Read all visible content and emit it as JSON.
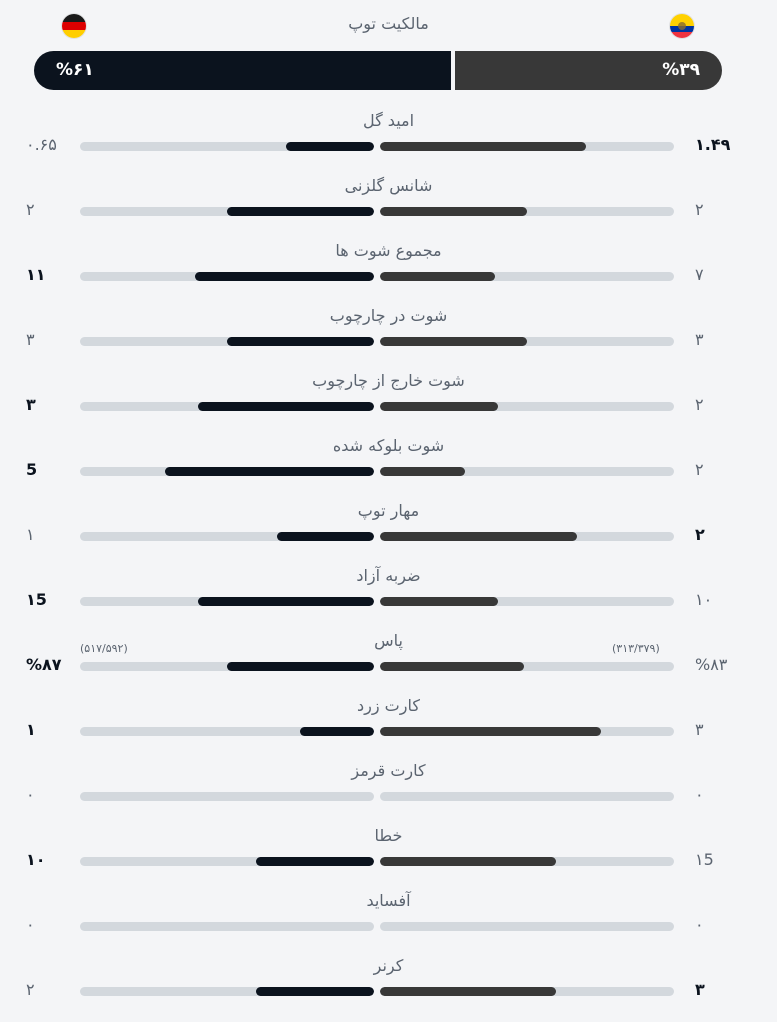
{
  "possession": {
    "title": "مالکیت توپ",
    "left_value": "%۶۱",
    "right_value": "%۳۹",
    "left_fraction": 0.61,
    "right_fraction": 0.39,
    "left_flag": "germany-flag-icon",
    "right_flag": "ecuador-flag-icon"
  },
  "colors": {
    "left_team": "#0b131e",
    "right_team": "#383838",
    "track": "#d3d8dd",
    "background": "#f4f5f7"
  },
  "stats": [
    {
      "label": "امید گل",
      "left": "۰.۶۵",
      "right": "۱.۴۹",
      "left_frac": 0.3,
      "right_frac": 0.7,
      "bold": "right"
    },
    {
      "label": "شانس گلزنی",
      "left": "۲",
      "right": "۲",
      "left_frac": 0.5,
      "right_frac": 0.5,
      "bold": "none"
    },
    {
      "label": "مجموع شوت ها",
      "left": "۱۱",
      "right": "۷",
      "left_frac": 0.61,
      "right_frac": 0.39,
      "bold": "left"
    },
    {
      "label": "شوت در چارچوب",
      "left": "۳",
      "right": "۳",
      "left_frac": 0.5,
      "right_frac": 0.5,
      "bold": "none"
    },
    {
      "label": "شوت خارج از چارچوب",
      "left": "۳",
      "right": "۲",
      "left_frac": 0.6,
      "right_frac": 0.4,
      "bold": "left"
    },
    {
      "label": "شوت بلوکه شده",
      "left": "5",
      "right": "۲",
      "left_frac": 0.71,
      "right_frac": 0.29,
      "bold": "left"
    },
    {
      "label": "مهار توپ",
      "left": "۱",
      "right": "۲",
      "left_frac": 0.33,
      "right_frac": 0.67,
      "bold": "right"
    },
    {
      "label": "ضربه آزاد",
      "left": "۱5",
      "right": "۱۰",
      "left_frac": 0.6,
      "right_frac": 0.4,
      "bold": "left"
    },
    {
      "label": "پاس",
      "left": "%۸۷",
      "right": "%۸۳",
      "left_frac": 0.5,
      "right_frac": 0.49,
      "bold": "left",
      "left_sub": "(۵۱۷/۵۹۲)",
      "right_sub": "(۳۱۳/۳۷۹)"
    },
    {
      "label": "کارت زرد",
      "left": "۱",
      "right": "۳",
      "left_frac": 0.25,
      "right_frac": 0.75,
      "bold": "left"
    },
    {
      "label": "کارت قرمز",
      "left": "۰",
      "right": "۰",
      "left_frac": 0,
      "right_frac": 0,
      "bold": "none"
    },
    {
      "label": "خطا",
      "left": "۱۰",
      "right": "۱5",
      "left_frac": 0.4,
      "right_frac": 0.6,
      "bold": "left"
    },
    {
      "label": "آفساید",
      "left": "۰",
      "right": "۰",
      "left_frac": 0,
      "right_frac": 0,
      "bold": "none"
    },
    {
      "label": "کرنر",
      "left": "۲",
      "right": "۳",
      "left_frac": 0.4,
      "right_frac": 0.6,
      "bold": "right"
    }
  ]
}
